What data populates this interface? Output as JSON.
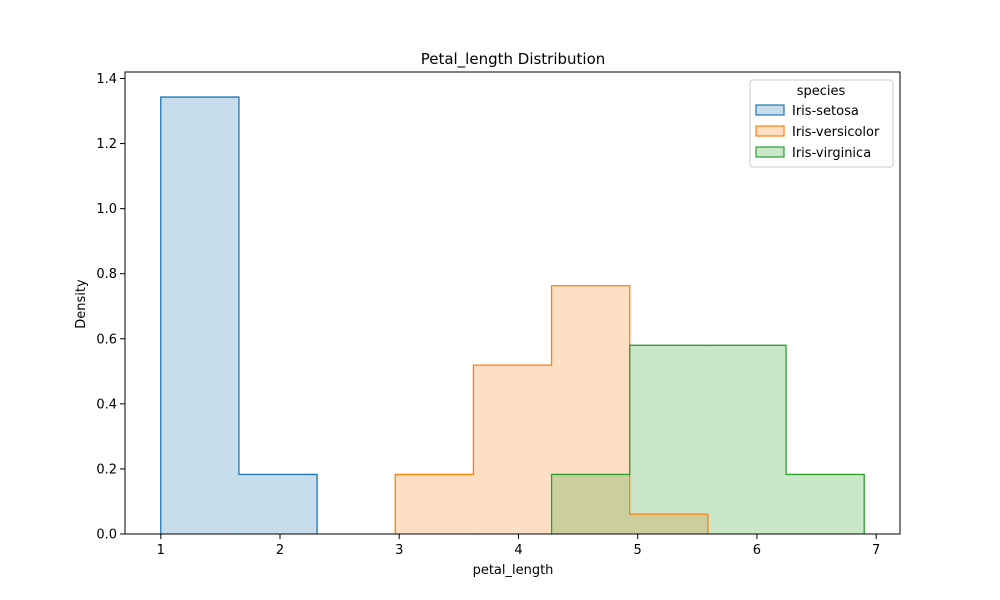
{
  "chart_data": {
    "type": "histogram",
    "title": "Petal_length Distribution",
    "xlabel": "petal_length",
    "ylabel": "Density",
    "xlim": [
      0.7,
      7.2
    ],
    "ylim": [
      0,
      1.42
    ],
    "xticks": [
      1,
      2,
      3,
      4,
      5,
      6,
      7
    ],
    "yticks": [
      0.0,
      0.2,
      0.4,
      0.6,
      0.8,
      1.0,
      1.2,
      1.4
    ],
    "grid": false,
    "legend": {
      "title": "species",
      "placement": "top-right"
    },
    "bin_edges": [
      1.0,
      1.6555555556,
      2.3111111111,
      2.9666666667,
      3.6222222222,
      4.2777777778,
      4.9333333333,
      5.5888888889,
      6.2444444444,
      6.9
    ],
    "series": [
      {
        "name": "Iris-setosa",
        "color": "#1f77b4",
        "densities": [
          1.343,
          0.183,
          0,
          0,
          0,
          0,
          0,
          0,
          0
        ]
      },
      {
        "name": "Iris-versicolor",
        "color": "#ff7f0e",
        "densities": [
          0,
          0,
          0,
          0.183,
          0.519,
          0.763,
          0.061,
          0,
          0
        ]
      },
      {
        "name": "Iris-virginica",
        "color": "#2ca02c",
        "densities": [
          0,
          0,
          0,
          0,
          0,
          0.183,
          0.58,
          0.58,
          0.183
        ]
      }
    ]
  }
}
